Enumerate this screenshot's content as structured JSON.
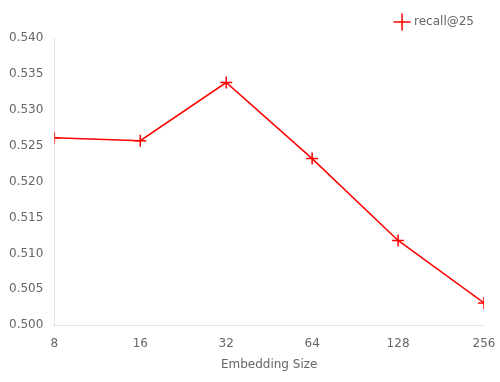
{
  "chart_data": {
    "type": "line",
    "x_label": "Embedding Size",
    "x": [
      8,
      16,
      32,
      64,
      128,
      256
    ],
    "series": [
      {
        "name": "recall@25",
        "color": "#ff0000",
        "marker": "plus",
        "values": [
          0.5261,
          0.5257,
          0.5338,
          0.5232,
          0.5118,
          0.5031
        ]
      }
    ],
    "log": "x",
    "xlim": [
      8,
      256
    ],
    "xticks": [
      8,
      16,
      32,
      64,
      128,
      256
    ],
    "ylim": [
      0.5,
      0.54
    ],
    "yticks": [
      {
        "value": 0.5,
        "label": "0.500"
      },
      0.505,
      {
        "value": 0.51,
        "label": "0.510"
      },
      0.515,
      {
        "value": 0.52,
        "label": "0.520"
      },
      0.525,
      {
        "value": 0.53,
        "label": "0.530"
      },
      0.535,
      {
        "value": 0.54,
        "label": "0.540"
      }
    ],
    "grid": false,
    "legend": "upper right"
  }
}
